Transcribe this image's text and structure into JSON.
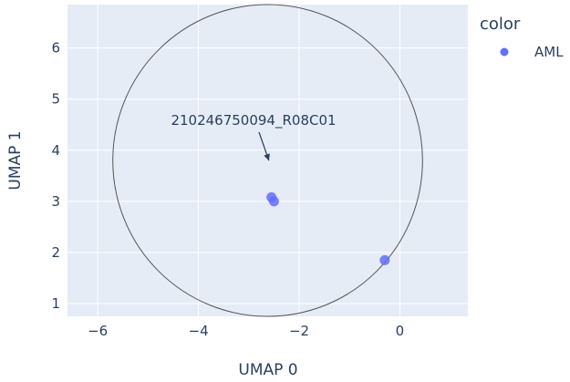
{
  "chart_data": {
    "type": "scatter",
    "xlabel": "UMAP 0",
    "ylabel": "UMAP 1",
    "xlim": [
      -6.6,
      1.35
    ],
    "ylim": [
      0.75,
      6.85
    ],
    "xticks": [
      -6,
      -4,
      -2,
      0
    ],
    "xtick_labels": [
      "−6",
      "−4",
      "−2",
      "0"
    ],
    "yticks": [
      1,
      2,
      3,
      4,
      5,
      6
    ],
    "ytick_labels": [
      "1",
      "2",
      "3",
      "4",
      "5",
      "6"
    ],
    "grid": true,
    "legend": {
      "title": "color",
      "placement": "top-right",
      "entries": [
        "AML"
      ]
    },
    "series": [
      {
        "name": "AML",
        "color": "#636efa",
        "points": [
          {
            "x": -2.55,
            "y": 3.08
          },
          {
            "x": -2.5,
            "y": 3.0
          },
          {
            "x": -0.3,
            "y": 1.85
          }
        ]
      }
    ],
    "shapes": [
      {
        "type": "circle",
        "x0": -5.7,
        "x1": 0.45,
        "y0": 0.75,
        "y1": 6.85,
        "color": "#555555"
      }
    ],
    "annotations": [
      {
        "text": "210246750094_R08C01",
        "x": -2.6,
        "y": 3.78
      }
    ],
    "plot_background": "#e5ecf6"
  }
}
